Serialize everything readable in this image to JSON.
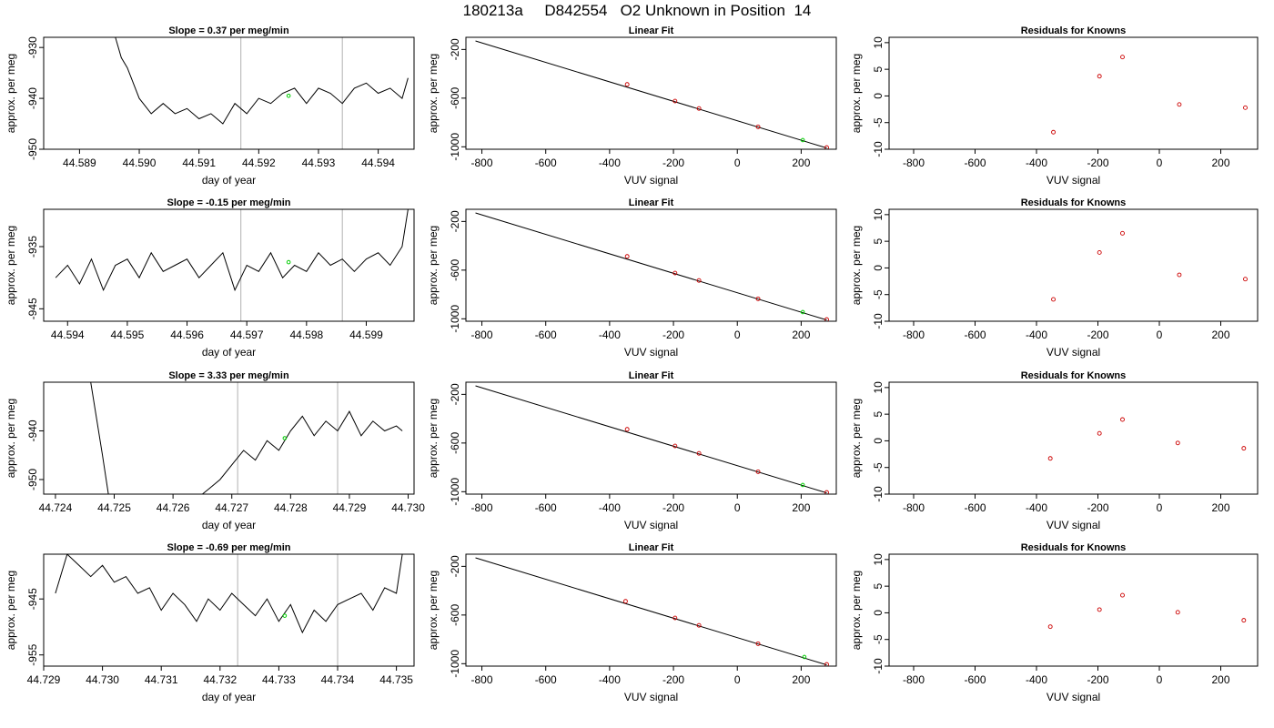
{
  "page_title": "180213a     D842554   O2 Unknown in Position  14",
  "colors": {
    "line": "#000000",
    "unknown_point": "#00cc00",
    "known_point": "#cc0000",
    "vline": "#bebebe"
  },
  "chart_data": [
    {
      "type": "line",
      "title": "Slope =  0.37  per meg/min",
      "xlabel": "day of year",
      "ylabel": "approx. per meg",
      "xlim": [
        44.5884,
        44.5946
      ],
      "ylim": [
        -950,
        -928
      ],
      "xticks": [
        44.589,
        44.59,
        44.591,
        44.592,
        44.593,
        44.594
      ],
      "xtick_labels": [
        "44.589",
        "44.590",
        "44.591",
        "44.592",
        "44.593",
        "44.594"
      ],
      "yticks": [
        -950,
        -940,
        -930
      ],
      "ytick_labels": [
        "-950",
        "-940",
        "-930"
      ],
      "vlines": [
        44.5917,
        44.5934
      ],
      "highlight": {
        "x": 44.5925,
        "y": -939.5
      },
      "series": {
        "x": [
          44.5896,
          44.5897,
          44.5898,
          44.59,
          44.5902,
          44.5904,
          44.5906,
          44.5908,
          44.591,
          44.5912,
          44.5914,
          44.5916,
          44.5918,
          44.592,
          44.5922,
          44.5924,
          44.5926,
          44.5928,
          44.593,
          44.5932,
          44.5934,
          44.5936,
          44.5938,
          44.594,
          44.5942,
          44.5944,
          44.5945
        ],
        "y": [
          -928,
          -932,
          -934,
          -940,
          -943,
          -941,
          -943,
          -942,
          -944,
          -943,
          -945,
          -941,
          -943,
          -940,
          -941,
          -939,
          -938,
          -941,
          -938,
          -939,
          -941,
          -938,
          -937,
          -939,
          -938,
          -940,
          -936
        ]
      }
    },
    {
      "type": "line",
      "title": "Linear Fit",
      "xlabel": "VUV signal",
      "ylabel": "approx. per meg",
      "xlim": [
        -850,
        310
      ],
      "ylim": [
        -1020,
        -100
      ],
      "xticks": [
        -800,
        -600,
        -400,
        -200,
        0,
        200
      ],
      "xtick_labels": [
        "-800",
        "-600",
        "-400",
        "-200",
        "0",
        "200"
      ],
      "yticks": [
        -1000,
        -600,
        -200
      ],
      "ytick_labels": [
        "-1000",
        "-600",
        "-200"
      ],
      "fit_line": {
        "x": [
          -820,
          280
        ],
        "y": [
          -130,
          -1010
        ]
      },
      "knowns": {
        "x": [
          -345,
          -195,
          -120,
          65,
          280
        ],
        "y": [
          -487,
          -624,
          -685,
          -836,
          -1006
        ]
      },
      "unknown": {
        "x": 205,
        "y": -945
      }
    },
    {
      "type": "scatter",
      "title": "Residuals for Knowns",
      "xlabel": "VUV signal",
      "ylabel": "approx. per meg",
      "xlim": [
        -880,
        320
      ],
      "ylim": [
        -10,
        11
      ],
      "xticks": [
        -800,
        -600,
        -400,
        -200,
        0,
        200
      ],
      "xtick_labels": [
        "-800",
        "-600",
        "-400",
        "-200",
        "0",
        "200"
      ],
      "yticks": [
        -10,
        -5,
        0,
        5,
        10
      ],
      "ytick_labels": [
        "-10",
        "-5",
        "0",
        "5",
        "10"
      ],
      "points": {
        "x": [
          -345,
          -195,
          -120,
          65,
          280
        ],
        "y": [
          -6.8,
          3.7,
          7.3,
          -1.6,
          -2.2
        ]
      }
    },
    {
      "type": "line",
      "title": "Slope =  -0.15  per meg/min",
      "xlabel": "day of year",
      "ylabel": "approx. per meg",
      "xlim": [
        44.5936,
        44.5998
      ],
      "ylim": [
        -947,
        -929
      ],
      "xticks": [
        44.594,
        44.595,
        44.596,
        44.597,
        44.598,
        44.599
      ],
      "xtick_labels": [
        "44.594",
        "44.595",
        "44.596",
        "44.597",
        "44.598",
        "44.599"
      ],
      "yticks": [
        -945,
        -935
      ],
      "ytick_labels": [
        "-945",
        "-935"
      ],
      "vlines": [
        44.5969,
        44.5986
      ],
      "highlight": {
        "x": 44.5977,
        "y": -937.5
      },
      "series": {
        "x": [
          44.5938,
          44.594,
          44.5942,
          44.5944,
          44.5946,
          44.5948,
          44.595,
          44.5952,
          44.5954,
          44.5956,
          44.5958,
          44.596,
          44.5962,
          44.5964,
          44.5966,
          44.5968,
          44.597,
          44.5972,
          44.5974,
          44.5976,
          44.5978,
          44.598,
          44.5982,
          44.5984,
          44.5986,
          44.5988,
          44.599,
          44.5992,
          44.5994,
          44.5996,
          44.5997
        ],
        "y": [
          -940,
          -938,
          -941,
          -937,
          -942,
          -938,
          -937,
          -940,
          -936,
          -939,
          -938,
          -937,
          -940,
          -938,
          -936,
          -942,
          -938,
          -939,
          -936,
          -940,
          -938,
          -939,
          -936,
          -938,
          -937,
          -939,
          -937,
          -936,
          -938,
          -935,
          -929
        ]
      }
    },
    {
      "type": "line",
      "title": "Linear Fit",
      "xlabel": "VUV signal",
      "ylabel": "approx. per meg",
      "xlim": [
        -850,
        310
      ],
      "ylim": [
        -1020,
        -100
      ],
      "xticks": [
        -800,
        -600,
        -400,
        -200,
        0,
        200
      ],
      "xtick_labels": [
        "-800",
        "-600",
        "-400",
        "-200",
        "0",
        "200"
      ],
      "yticks": [
        -1000,
        -600,
        -200
      ],
      "ytick_labels": [
        "-1000",
        "-600",
        "-200"
      ],
      "fit_line": {
        "x": [
          -820,
          280
        ],
        "y": [
          -130,
          -1010
        ]
      },
      "knowns": {
        "x": [
          -345,
          -195,
          -120,
          65,
          280
        ],
        "y": [
          -487,
          -624,
          -685,
          -836,
          -1006
        ]
      },
      "unknown": {
        "x": 205,
        "y": -945
      }
    },
    {
      "type": "scatter",
      "title": "Residuals for Knowns",
      "xlabel": "VUV signal",
      "ylabel": "approx. per meg",
      "xlim": [
        -880,
        320
      ],
      "ylim": [
        -10,
        11
      ],
      "xticks": [
        -800,
        -600,
        -400,
        -200,
        0,
        200
      ],
      "xtick_labels": [
        "-800",
        "-600",
        "-400",
        "-200",
        "0",
        "200"
      ],
      "yticks": [
        -10,
        -5,
        0,
        5,
        10
      ],
      "ytick_labels": [
        "-10",
        "-5",
        "0",
        "5",
        "10"
      ],
      "points": {
        "x": [
          -345,
          -195,
          -120,
          65,
          280
        ],
        "y": [
          -5.9,
          2.9,
          6.5,
          -1.3,
          -2.1
        ]
      }
    },
    {
      "type": "line",
      "title": "Slope =  3.33  per meg/min",
      "xlabel": "day of year",
      "ylabel": "approx. per meg",
      "xlim": [
        44.7238,
        44.7301
      ],
      "ylim": [
        -953,
        -930
      ],
      "xticks": [
        44.724,
        44.725,
        44.726,
        44.727,
        44.728,
        44.729,
        44.73
      ],
      "xtick_labels": [
        "44.724",
        "44.725",
        "44.726",
        "44.727",
        "44.728",
        "44.729",
        "44.730"
      ],
      "yticks": [
        -950,
        -940
      ],
      "ytick_labels": [
        "-950",
        "-940"
      ],
      "vlines": [
        44.7271,
        44.7288
      ],
      "highlight": {
        "x": 44.7279,
        "y": -941.5
      },
      "series": {
        "x": [
          44.7246,
          44.7248,
          44.7249,
          44.7265,
          44.7266,
          44.7268,
          44.727,
          44.7272,
          44.7274,
          44.7276,
          44.7278,
          44.728,
          44.7282,
          44.7284,
          44.7286,
          44.7288,
          44.729,
          44.7292,
          44.7294,
          44.7296,
          44.7298,
          44.7299
        ],
        "y": [
          -930,
          -945,
          -953,
          -953,
          -952,
          -950,
          -947,
          -944,
          -946,
          -942,
          -944,
          -940,
          -937,
          -941,
          -938,
          -940,
          -936,
          -941,
          -938,
          -940,
          -939,
          -940
        ]
      }
    },
    {
      "type": "line",
      "title": "Linear Fit",
      "xlabel": "VUV signal",
      "ylabel": "approx. per meg",
      "xlim": [
        -850,
        310
      ],
      "ylim": [
        -1020,
        -100
      ],
      "xticks": [
        -800,
        -600,
        -400,
        -200,
        0,
        200
      ],
      "xtick_labels": [
        "-800",
        "-600",
        "-400",
        "-200",
        "0",
        "200"
      ],
      "yticks": [
        -1000,
        -600,
        -200
      ],
      "ytick_labels": [
        "-1000",
        "-600",
        "-200"
      ],
      "fit_line": {
        "x": [
          -820,
          280
        ],
        "y": [
          -130,
          -1010
        ]
      },
      "knowns": {
        "x": [
          -345,
          -195,
          -120,
          65,
          280
        ],
        "y": [
          -487,
          -624,
          -685,
          -836,
          -1006
        ]
      },
      "unknown": {
        "x": 205,
        "y": -945
      }
    },
    {
      "type": "scatter",
      "title": "Residuals for Knowns",
      "xlabel": "VUV signal",
      "ylabel": "approx. per meg",
      "xlim": [
        -880,
        320
      ],
      "ylim": [
        -10,
        11
      ],
      "xticks": [
        -800,
        -600,
        -400,
        -200,
        0,
        200
      ],
      "xtick_labels": [
        "-800",
        "-600",
        "-400",
        "-200",
        "0",
        "200"
      ],
      "yticks": [
        -10,
        -5,
        0,
        5,
        10
      ],
      "ytick_labels": [
        "-10",
        "-5",
        "0",
        "5",
        "10"
      ],
      "points": {
        "x": [
          -355,
          -195,
          -120,
          60,
          275
        ],
        "y": [
          -3.3,
          1.4,
          4.0,
          -0.4,
          -1.4
        ]
      }
    },
    {
      "type": "line",
      "title": "Slope =  -0.69  per meg/min",
      "xlabel": "day of year",
      "ylabel": "approx. per meg",
      "xlim": [
        44.729,
        44.7353
      ],
      "ylim": [
        -957,
        -937
      ],
      "xticks": [
        44.729,
        44.73,
        44.731,
        44.732,
        44.733,
        44.734,
        44.735
      ],
      "xtick_labels": [
        "44.729",
        "44.730",
        "44.731",
        "44.732",
        "44.733",
        "44.734",
        "44.735"
      ],
      "yticks": [
        -955,
        -945
      ],
      "ytick_labels": [
        "-955",
        "-945"
      ],
      "vlines": [
        44.7323,
        44.734
      ],
      "highlight": {
        "x": 44.7331,
        "y": -948
      },
      "series": {
        "x": [
          44.7292,
          44.7294,
          44.7296,
          44.7298,
          44.73,
          44.7302,
          44.7304,
          44.7306,
          44.7308,
          44.731,
          44.7312,
          44.7314,
          44.7316,
          44.7318,
          44.732,
          44.7322,
          44.7324,
          44.7326,
          44.7328,
          44.733,
          44.7332,
          44.7334,
          44.7336,
          44.7338,
          44.734,
          44.7342,
          44.7344,
          44.7346,
          44.7348,
          44.735,
          44.7351
        ],
        "y": [
          -944,
          -937,
          -939,
          -941,
          -939,
          -942,
          -941,
          -944,
          -943,
          -947,
          -944,
          -946,
          -949,
          -945,
          -947,
          -944,
          -946,
          -948,
          -945,
          -949,
          -946,
          -951,
          -947,
          -949,
          -946,
          -945,
          -944,
          -947,
          -943,
          -944,
          -937
        ]
      }
    },
    {
      "type": "line",
      "title": "Linear Fit",
      "xlabel": "VUV signal",
      "ylabel": "approx. per meg",
      "xlim": [
        -850,
        310
      ],
      "ylim": [
        -1020,
        -100
      ],
      "xticks": [
        -800,
        -600,
        -400,
        -200,
        0,
        200
      ],
      "xtick_labels": [
        "-800",
        "-600",
        "-400",
        "-200",
        "0",
        "200"
      ],
      "yticks": [
        -1000,
        -600,
        -200
      ],
      "ytick_labels": [
        "-1000",
        "-600",
        "-200"
      ],
      "fit_line": {
        "x": [
          -820,
          280
        ],
        "y": [
          -130,
          -1010
        ]
      },
      "knowns": {
        "x": [
          -350,
          -195,
          -120,
          65,
          280
        ],
        "y": [
          -487,
          -624,
          -685,
          -836,
          -1006
        ]
      },
      "unknown": {
        "x": 210,
        "y": -945
      }
    },
    {
      "type": "scatter",
      "title": "Residuals for Knowns",
      "xlabel": "VUV signal",
      "ylabel": "approx. per meg",
      "xlim": [
        -880,
        320
      ],
      "ylim": [
        -10,
        11
      ],
      "xticks": [
        -800,
        -600,
        -400,
        -200,
        0,
        200
      ],
      "xtick_labels": [
        "-800",
        "-600",
        "-400",
        "-200",
        "0",
        "200"
      ],
      "yticks": [
        -10,
        -5,
        0,
        5,
        10
      ],
      "ytick_labels": [
        "-10",
        "-5",
        "0",
        "5",
        "10"
      ],
      "points": {
        "x": [
          -355,
          -195,
          -120,
          60,
          275
        ],
        "y": [
          -2.6,
          0.6,
          3.3,
          0.1,
          -1.4
        ]
      }
    }
  ]
}
